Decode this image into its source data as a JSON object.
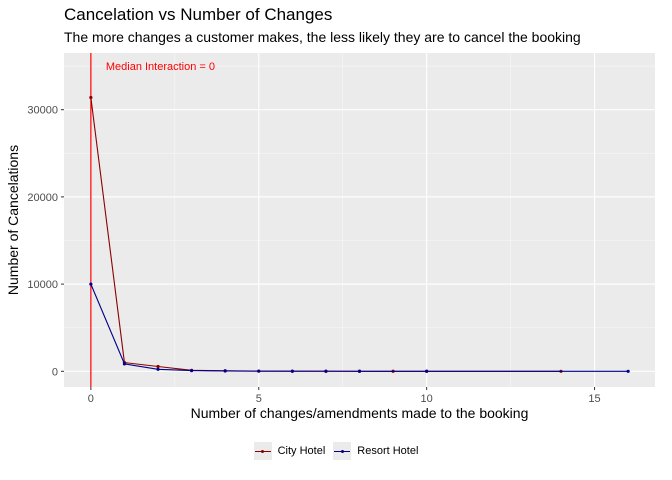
{
  "chart_data": {
    "type": "line",
    "title": "Cancelation vs Number of Changes",
    "subtitle": "The more changes a customer makes, the less likely they are to cancel the booking",
    "xlabel": "Number of changes/amendments made to the booking",
    "ylabel": "Number of Cancelations",
    "xlim": [
      -0.8,
      16.8
    ],
    "ylim": [
      -1800,
      36500
    ],
    "x_ticks": [
      0,
      5,
      10,
      15
    ],
    "x_tick_labels": [
      "0",
      "5",
      "10",
      "15"
    ],
    "y_ticks": [
      0,
      10000,
      20000,
      30000
    ],
    "y_tick_labels": [
      "0",
      "10000",
      "20000",
      "30000"
    ],
    "grid": true,
    "legend_position": "bottom",
    "series": [
      {
        "name": "City Hotel",
        "color": "#8b0000",
        "points": [
          [
            0,
            31400
          ],
          [
            1,
            1000
          ],
          [
            2,
            550
          ],
          [
            3,
            110
          ],
          [
            4,
            60
          ],
          [
            5,
            30
          ],
          [
            6,
            15
          ],
          [
            7,
            10
          ],
          [
            8,
            5
          ],
          [
            9,
            3
          ],
          [
            10,
            2
          ],
          [
            14,
            1
          ]
        ]
      },
      {
        "name": "Resort Hotel",
        "color": "#00008b",
        "points": [
          [
            0,
            10000
          ],
          [
            1,
            850
          ],
          [
            2,
            230
          ],
          [
            3,
            80
          ],
          [
            4,
            40
          ],
          [
            5,
            15
          ],
          [
            6,
            8
          ],
          [
            7,
            5
          ],
          [
            8,
            3
          ],
          [
            10,
            2
          ],
          [
            16,
            1
          ]
        ]
      }
    ],
    "annotations": [
      {
        "type": "vline",
        "x": 0,
        "color": "#ff0000",
        "label": "Median Interaction = 0",
        "label_y": 35000
      }
    ]
  }
}
